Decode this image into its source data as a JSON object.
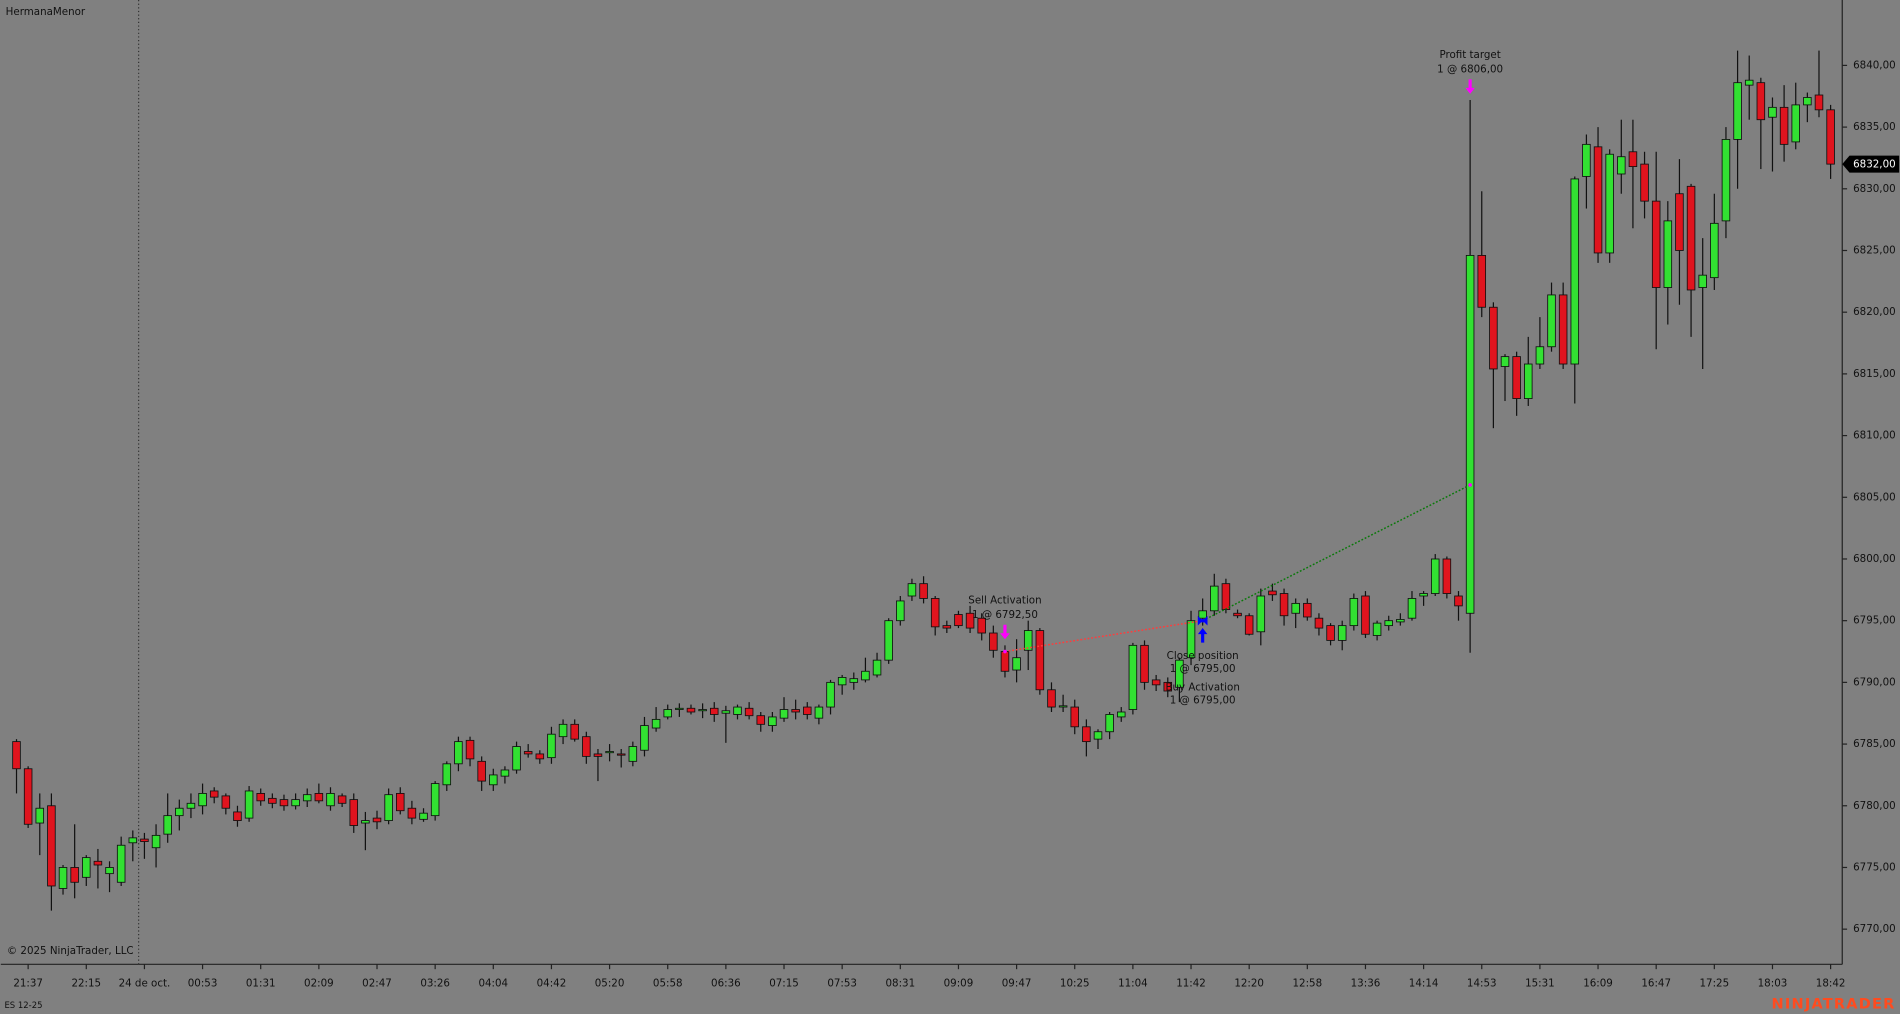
{
  "chart_data": {
    "type": "candlestick",
    "title": "HermanaMenor",
    "copyright": "© 2025 NinjaTrader, LLC",
    "instrument": "ES 12-25",
    "brand": "NINJATRADER",
    "up_color": "#32e132",
    "down_color": "#e0141e",
    "open": [
      6785.2,
      6783,
      6778.6,
      6780,
      6773.3,
      6775,
      6774.2,
      6775.5,
      6774.5,
      6773.8,
      6777,
      6777.3,
      6776.6,
      6777.7,
      6779.2,
      6779.8,
      6780,
      6781.2,
      6780.8,
      6779.5,
      6779,
      6781,
      6780.6,
      6780.5,
      6780,
      6780.4,
      6781,
      6780,
      6780.8,
      6780.5,
      6778.6,
      6779,
      6778.8,
      6781,
      6779.8,
      6778.9,
      6779.2,
      6781.7,
      6783.4,
      6785.3,
      6783.6,
      6781.7,
      6782.4,
      6782.9,
      6784.4,
      6784.2,
      6783.9,
      6785.6,
      6786.6,
      6785.6,
      6784.2,
      6784.3,
      6784.2,
      6783.6,
      6784.5,
      6786.3,
      6787.2,
      6787.8,
      6787.9,
      6787.7,
      6787.9,
      6787.5,
      6787.4,
      6787.9,
      6787.3,
      6786.5,
      6787.1,
      6787.8,
      6788,
      6787.1,
      6788,
      6789.8,
      6790,
      6790.2,
      6790.6,
      6791.8,
      6795,
      6797,
      6798,
      6796.8,
      6794.6,
      6795.5,
      6795.6,
      6795.2,
      6794,
      6792.5,
      6791,
      6792.6,
      6794.2,
      6789.4,
      6788,
      6788,
      6786.4,
      6785.4,
      6786,
      6787.2,
      6787.8,
      6793,
      6790.2,
      6790,
      6789.6,
      6792,
      6795.2,
      6795.8,
      6798,
      6795.6,
      6795.4,
      6794.1,
      6797.4,
      6797.2,
      6795.6,
      6796.4,
      6795.2,
      6794.6,
      6793.4,
      6794.6,
      6797,
      6793.8,
      6794.6,
      6794.9,
      6795.2,
      6797,
      6797.2,
      6800,
      6797,
      6795.6,
      6824.6,
      6820.4,
      6815.6,
      6816.4,
      6813,
      6815.8,
      6817.2,
      6821.4,
      6815.8,
      6831,
      6833.4,
      6824.8,
      6831.2,
      6833,
      6832,
      6829,
      6822,
      6829.6,
      6830.2,
      6822,
      6822.8,
      6827.4,
      6834,
      6838.4,
      6838.6,
      6835.8,
      6836.6,
      6833.8,
      6836.8,
      6837.6,
      6836.4
    ],
    "high": [
      6785.4,
      6783.2,
      6781,
      6781,
      6775.2,
      6778.5,
      6776,
      6776.5,
      6775.5,
      6777.5,
      6778,
      6777.8,
      6778.5,
      6781,
      6780.5,
      6781,
      6781.8,
      6781.5,
      6781,
      6780,
      6781.6,
      6781.4,
      6781,
      6780.9,
      6781,
      6781.4,
      6781.8,
      6781.5,
      6781,
      6781,
      6779.5,
      6779.6,
      6781.4,
      6781.5,
      6780.4,
      6779.8,
      6782,
      6783.6,
      6785.6,
      6785.6,
      6784,
      6783,
      6783.2,
      6785.2,
      6785,
      6784.5,
      6786.4,
      6787,
      6787,
      6786,
      6784.6,
      6785,
      6784.6,
      6785.2,
      6787.2,
      6788,
      6788.2,
      6788.3,
      6788.2,
      6788.3,
      6788.4,
      6788.1,
      6788.2,
      6788.4,
      6787.6,
      6787.6,
      6788.8,
      6788.6,
      6788.4,
      6788.2,
      6790.2,
      6790.6,
      6790.8,
      6792,
      6792.4,
      6795.2,
      6797,
      6798.4,
      6798.6,
      6797,
      6795,
      6795.8,
      6796.2,
      6795.6,
      6794.6,
      6793,
      6793.5,
      6795,
      6794.4,
      6790,
      6789,
      6788.6,
      6787,
      6786.2,
      6787.6,
      6788,
      6793.2,
      6793.4,
      6790.6,
      6790.4,
      6792,
      6795.8,
      6796.8,
      6798.8,
      6798.4,
      6795.9,
      6795.6,
      6797.6,
      6798,
      6797.6,
      6796.8,
      6796.8,
      6795.6,
      6794.8,
      6795,
      6797.2,
      6797.4,
      6795,
      6795.4,
      6795.6,
      6797.4,
      6797.4,
      6800.4,
      6800.2,
      6797.4,
      6837.2,
      6829.8,
      6820.8,
      6816.6,
      6816.8,
      6818,
      6819.6,
      6822.4,
      6822.4,
      6831,
      6834.4,
      6835,
      6833.2,
      6835.6,
      6835.6,
      6833,
      6833,
      6829,
      6832.4,
      6830.4,
      6826,
      6829.6,
      6835,
      6841.2,
      6840.8,
      6839,
      6837.4,
      6838.4,
      6838.6,
      6837.8,
      6841.2,
      6836.8
    ],
    "low": [
      6781,
      6778.2,
      6776,
      6771.5,
      6772.8,
      6772.5,
      6773.5,
      6773.3,
      6773,
      6773.5,
      6775.5,
      6775.7,
      6775,
      6777,
      6778,
      6779,
      6779.3,
      6780.2,
      6779.3,
      6778.3,
      6778.7,
      6780,
      6779.8,
      6779.6,
      6779.7,
      6779.9,
      6780.2,
      6779.6,
      6779.9,
      6777.8,
      6776.4,
      6778.1,
      6778.5,
      6779.3,
      6778.5,
      6778.7,
      6778.8,
      6781.2,
      6782.8,
      6783.2,
      6781.2,
      6781.2,
      6781.8,
      6782.6,
      6783.9,
      6783.4,
      6783.4,
      6785,
      6785.2,
      6783.4,
      6782,
      6783.6,
      6783.1,
      6783.2,
      6784,
      6786,
      6787,
      6787.2,
      6787.4,
      6787.1,
      6786.8,
      6785.1,
      6787,
      6787,
      6786,
      6786,
      6786.8,
      6787,
      6787,
      6786.6,
      6787.4,
      6789,
      6789.4,
      6790,
      6790.4,
      6791.5,
      6794.6,
      6796.6,
      6796.4,
      6793.8,
      6794,
      6794.4,
      6794,
      6793.4,
      6792,
      6790.4,
      6790,
      6791,
      6789,
      6787.6,
      6787.6,
      6785.8,
      6784,
      6784.6,
      6785.4,
      6786.8,
      6787.4,
      6789.4,
      6789.3,
      6788.8,
      6788.4,
      6791.4,
      6794.6,
      6795.4,
      6795.6,
      6795.2,
      6793.8,
      6793,
      6796.6,
      6794.6,
      6794.4,
      6795,
      6793.8,
      6793,
      6792.6,
      6794.2,
      6793.6,
      6793.4,
      6794.2,
      6794.6,
      6795,
      6796.2,
      6797,
      6796.8,
      6795,
      6792.4,
      6819.6,
      6810.6,
      6812.8,
      6811.6,
      6812.4,
      6815.4,
      6816.8,
      6815.4,
      6812.6,
      6828.4,
      6824,
      6824,
      6829.6,
      6826.8,
      6827.6,
      6817,
      6819,
      6820.6,
      6818,
      6815.4,
      6821.8,
      6826,
      6830,
      6835.6,
      6831.6,
      6831.4,
      6832.2,
      6833.2,
      6835.4,
      6835.8,
      6830.8
    ],
    "close": [
      6783,
      6778.5,
      6779.8,
      6773.5,
      6775,
      6773.8,
      6775.8,
      6775.2,
      6775,
      6776.8,
      6777.4,
      6777.1,
      6777.6,
      6779.2,
      6779.8,
      6780.2,
      6781,
      6780.7,
      6779.8,
      6778.8,
      6781.2,
      6780.4,
      6780.2,
      6780,
      6780.5,
      6780.9,
      6780.4,
      6781,
      6780.2,
      6778.4,
      6778.8,
      6778.7,
      6780.9,
      6779.6,
      6779,
      6779.4,
      6781.8,
      6783.4,
      6785.2,
      6783.8,
      6782,
      6782.5,
      6782.9,
      6784.8,
      6784.2,
      6783.8,
      6785.8,
      6786.6,
      6785.4,
      6784,
      6784,
      6784.4,
      6784.1,
      6784.8,
      6786.5,
      6787,
      6787.8,
      6787.9,
      6787.6,
      6787.8,
      6787.4,
      6787.7,
      6788,
      6787.3,
      6786.6,
      6787.2,
      6787.8,
      6787.6,
      6787.4,
      6788,
      6790,
      6790.4,
      6790.3,
      6790.9,
      6791.8,
      6795,
      6796.6,
      6798,
      6796.8,
      6794.5,
      6794.4,
      6794.6,
      6794.4,
      6794,
      6792.6,
      6790.9,
      6792,
      6794.2,
      6789.4,
      6788,
      6788.1,
      6786.4,
      6785.2,
      6786,
      6787.4,
      6787.6,
      6793,
      6790,
      6789.8,
      6789.3,
      6791.8,
      6795,
      6795.8,
      6797.8,
      6795.9,
      6795.4,
      6793.9,
      6797,
      6797.1,
      6795.4,
      6796.4,
      6795.3,
      6794.4,
      6793.4,
      6794.6,
      6796.8,
      6793.9,
      6794.8,
      6795,
      6795.1,
      6796.8,
      6797.2,
      6800,
      6797.2,
      6796.2,
      6824.6,
      6820.4,
      6815.4,
      6816.4,
      6813,
      6815.8,
      6817.2,
      6821.4,
      6815.8,
      6830.8,
      6833.6,
      6824.8,
      6832.8,
      6832.6,
      6831.8,
      6829,
      6822,
      6827.4,
      6825,
      6821.8,
      6823,
      6827.2,
      6834,
      6838.6,
      6838.8,
      6835.6,
      6836.6,
      6833.6,
      6836.8,
      6837.4,
      6836.4,
      6832
    ],
    "xlim": [
      -1.35,
      157
    ],
    "xticks": [
      {
        "value": 1,
        "label": "21:37"
      },
      {
        "value": 6,
        "label": "22:15"
      },
      {
        "value": 11,
        "label": "24 de oct."
      },
      {
        "value": 16,
        "label": "00:53"
      },
      {
        "value": 21,
        "label": "01:31"
      },
      {
        "value": 26,
        "label": "02:09"
      },
      {
        "value": 31,
        "label": "02:47"
      },
      {
        "value": 36,
        "label": "03:26"
      },
      {
        "value": 41,
        "label": "04:04"
      },
      {
        "value": 46,
        "label": "04:42"
      },
      {
        "value": 51,
        "label": "05:20"
      },
      {
        "value": 56,
        "label": "05:58"
      },
      {
        "value": 61,
        "label": "06:36"
      },
      {
        "value": 66,
        "label": "07:15"
      },
      {
        "value": 71,
        "label": "07:53"
      },
      {
        "value": 76,
        "label": "08:31"
      },
      {
        "value": 81,
        "label": "09:09"
      },
      {
        "value": 86,
        "label": "09:47"
      },
      {
        "value": 91,
        "label": "10:25"
      },
      {
        "value": 96,
        "label": "11:04"
      },
      {
        "value": 101,
        "label": "11:42"
      },
      {
        "value": 106,
        "label": "12:20"
      },
      {
        "value": 111,
        "label": "12:58"
      },
      {
        "value": 116,
        "label": "13:36"
      },
      {
        "value": 121,
        "label": "14:14"
      },
      {
        "value": 126,
        "label": "14:53"
      },
      {
        "value": 131,
        "label": "15:31"
      },
      {
        "value": 136,
        "label": "16:09"
      },
      {
        "value": 141,
        "label": "16:47"
      },
      {
        "value": 146,
        "label": "17:25"
      },
      {
        "value": 151,
        "label": "18:03"
      },
      {
        "value": 156,
        "label": "18:42"
      }
    ],
    "ylim": [
      6767.15,
      6845.3
    ],
    "yticks": [
      {
        "value": 6770,
        "label": "6770,00"
      },
      {
        "value": 6775,
        "label": "6775,00"
      },
      {
        "value": 6780,
        "label": "6780,00"
      },
      {
        "value": 6785,
        "label": "6785,00"
      },
      {
        "value": 6790,
        "label": "6790,00"
      },
      {
        "value": 6795,
        "label": "6795,00"
      },
      {
        "value": 6800,
        "label": "6800,00"
      },
      {
        "value": 6805,
        "label": "6805,00"
      },
      {
        "value": 6810,
        "label": "6810,00"
      },
      {
        "value": 6815,
        "label": "6815,00"
      },
      {
        "value": 6820,
        "label": "6820,00"
      },
      {
        "value": 6825,
        "label": "6825,00"
      },
      {
        "value": 6830,
        "label": "6830,00"
      },
      {
        "value": 6835,
        "label": "6835,00"
      },
      {
        "value": 6840,
        "label": "6840,00"
      }
    ],
    "last_price": {
      "value": 6832,
      "label": "6832,00"
    },
    "trades": [
      {
        "color": "#ff3c3c",
        "entry": {
          "name": "Sell Activation",
          "label": "1 @ 6792,50",
          "index": 85,
          "price": 6792.5,
          "arrow_color": "#ff00ff"
        },
        "exit": {
          "name": "Close position",
          "label": "1 @ 6795,00",
          "index": 102,
          "price": 6795,
          "arrow_color": "#0000ff"
        }
      },
      {
        "color": "#0a780a",
        "entry": {
          "name": "Buy Activation",
          "label": "1 @ 6795,00",
          "index": 102,
          "price": 6795,
          "arrow_color": "#0000ff"
        },
        "exit": {
          "name": "Profit target",
          "label": "1 @ 6806,00",
          "index": 125,
          "price": 6806,
          "arrow_color": "#ff00ff"
        }
      }
    ]
  }
}
